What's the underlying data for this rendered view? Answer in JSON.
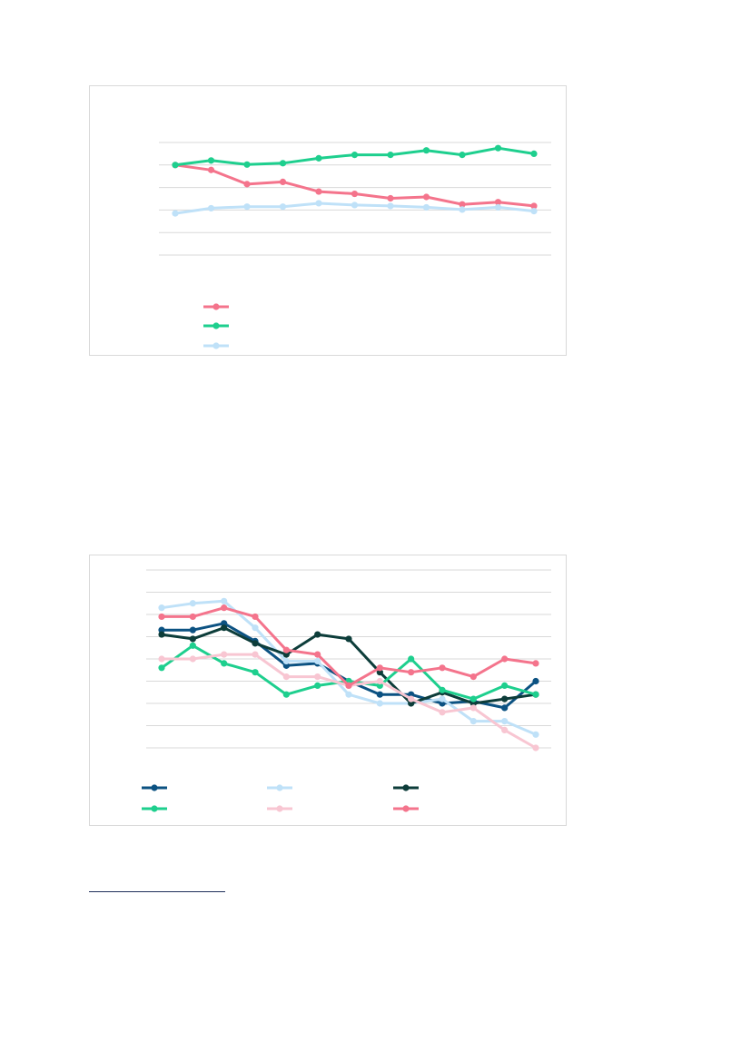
{
  "chart_data": [
    {
      "type": "line",
      "title": "",
      "xlabel": "",
      "ylabel": "",
      "ylim": [
        0,
        5
      ],
      "grid": true,
      "legend_position": "bottom-left",
      "x": [
        1,
        2,
        3,
        4,
        5,
        6,
        7,
        8,
        9,
        10,
        11
      ],
      "series": [
        {
          "color": "#f4748c",
          "values": [
            4.0,
            3.78,
            3.15,
            3.25,
            2.82,
            2.72,
            2.52,
            2.58,
            2.25,
            2.35,
            2.18
          ]
        },
        {
          "color": "#1ecf8e",
          "values": [
            4.0,
            4.2,
            4.02,
            4.08,
            4.3,
            4.45,
            4.45,
            4.65,
            4.45,
            4.75,
            4.5
          ]
        },
        {
          "color": "#bfe1f8",
          "values": [
            1.85,
            2.08,
            2.15,
            2.15,
            2.3,
            2.22,
            2.18,
            2.12,
            2.02,
            2.12,
            1.95
          ]
        }
      ]
    },
    {
      "type": "line",
      "title": "",
      "xlabel": "",
      "ylabel": "",
      "ylim": [
        0,
        8
      ],
      "grid": true,
      "legend_position": "bottom",
      "x": [
        1,
        2,
        3,
        4,
        5,
        6,
        7,
        8,
        9,
        10,
        11,
        12,
        13
      ],
      "series": [
        {
          "color": "#0c5282",
          "values": [
            5.3,
            5.3,
            5.6,
            4.8,
            3.7,
            3.8,
            3.0,
            2.4,
            2.4,
            2.0,
            2.1,
            1.8,
            3.0
          ]
        },
        {
          "color": "#bfe1f8",
          "values": [
            6.3,
            6.5,
            6.6,
            5.4,
            3.9,
            3.9,
            2.4,
            2.0,
            2.0,
            2.2,
            1.2,
            1.2,
            0.6
          ]
        },
        {
          "color": "#0d3d3a",
          "values": [
            5.1,
            4.9,
            5.4,
            4.7,
            4.2,
            5.1,
            4.9,
            3.4,
            2.0,
            2.5,
            2.0,
            2.2,
            2.4
          ]
        },
        {
          "color": "#1ecf8e",
          "values": [
            3.6,
            4.6,
            3.8,
            3.4,
            2.4,
            2.8,
            3.0,
            2.8,
            4.0,
            2.6,
            2.2,
            2.8,
            2.4
          ]
        },
        {
          "color": "#f8c6d2",
          "values": [
            4.0,
            4.0,
            4.2,
            4.2,
            3.2,
            3.2,
            2.8,
            3.0,
            2.2,
            1.6,
            1.8,
            0.8,
            0.0
          ]
        },
        {
          "color": "#f4748c",
          "values": [
            5.9,
            5.9,
            6.3,
            5.9,
            4.4,
            4.2,
            2.8,
            3.6,
            3.4,
            3.6,
            3.2,
            4.0,
            3.8
          ]
        }
      ]
    }
  ]
}
